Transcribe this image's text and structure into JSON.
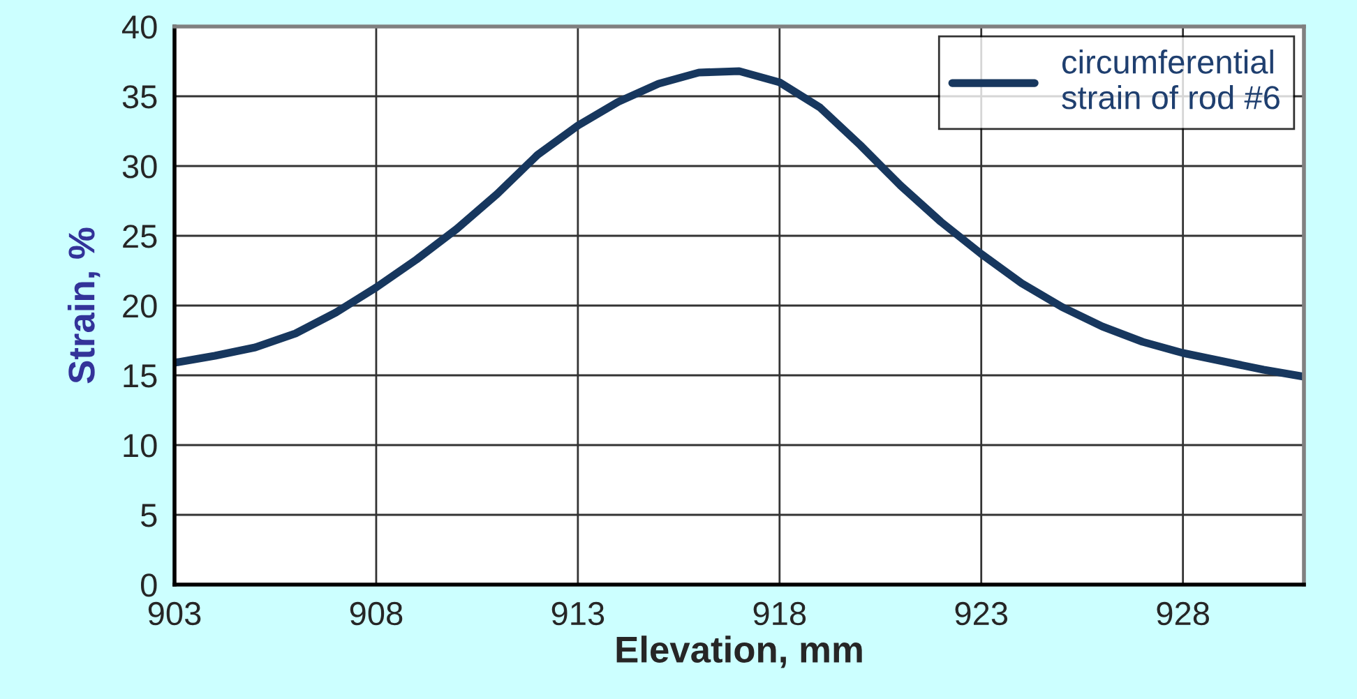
{
  "chart_data": {
    "type": "line",
    "xlabel": "Elevation, mm",
    "ylabel": "Strain, %",
    "series": [
      {
        "name": "circumferential\nstrain of rod #6",
        "color": "#17375e",
        "x": [
          903,
          904,
          905,
          906,
          907,
          908,
          909,
          910,
          911,
          912,
          913,
          914,
          915,
          916,
          917,
          918,
          919,
          920,
          921,
          922,
          923,
          924,
          925,
          926,
          927,
          928,
          929,
          930,
          931
        ],
        "values": [
          15.9,
          16.4,
          17.0,
          18.0,
          19.5,
          21.3,
          23.3,
          25.5,
          28.0,
          30.8,
          32.9,
          34.6,
          35.9,
          36.7,
          36.8,
          36.0,
          34.2,
          31.5,
          28.6,
          26.0,
          23.7,
          21.6,
          19.9,
          18.5,
          17.4,
          16.6,
          16.0,
          15.4,
          14.9
        ]
      }
    ],
    "xlim": [
      903,
      931
    ],
    "xticks": [
      903,
      908,
      913,
      918,
      923,
      928
    ],
    "ylim": [
      0,
      40
    ],
    "yticks": [
      0,
      5,
      10,
      15,
      20,
      25,
      30,
      35,
      40
    ],
    "grid": true,
    "legend": "top right",
    "marker": "none",
    "line_style": "solid"
  }
}
